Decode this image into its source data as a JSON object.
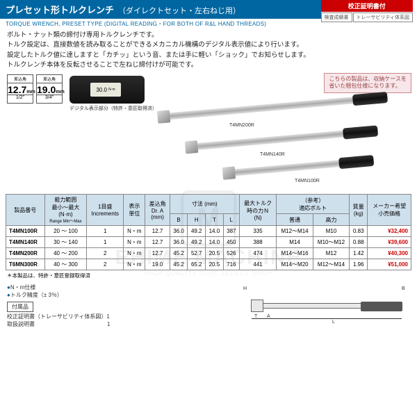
{
  "header": {
    "title_main": "プレセット形トルクレンチ",
    "title_sub": "（ダイレクトセット・左右ねじ用）",
    "subtitle_en": "TORQUE WRENCH, PRESET TYPE (DIGITAL READING・FOR BOTH OF R&L HAND THREADS)",
    "badge_red": "校正証明書付",
    "badge_g1": "検査成績書",
    "badge_g2": "トレーサビリティ体系図"
  },
  "desc": {
    "l1": "ボルト・ナット類の締付け専用トルクレンチです。",
    "l2": "トルク設定は、直接数値を読み取ることができるメカニカル機構のデジタル表示値により行います。",
    "l3": "設定したトルク値に達しますと「カチッ」という音、または手に軽い「ショック」でお知らせします。",
    "l4": "トルクレンチ本体を反転させることで左ねじ締付けが可能です。"
  },
  "drives": [
    {
      "top": "差込角",
      "mm": "12.7",
      "unit": "mm",
      "frac": "1/2\""
    },
    {
      "top": "差込角",
      "mm": "19.0",
      "unit": "mm",
      "frac": "3/4\""
    }
  ],
  "digital": {
    "value": "30.0",
    "unit": "N·m",
    "caption": "デジタル表示部分（特許・意匠取得済）"
  },
  "note_box": "こちらの製品は、収納ケースを\n省いた梱包仕様になります。",
  "wrench_labels": {
    "w1": "T4MN200R",
    "w2": "T4MN140R",
    "w3": "T4MN100R"
  },
  "table": {
    "headers": {
      "part": "製品番号",
      "range": "能力範囲\n最小〜最大\n(N·m)",
      "range_en": "Range Min〜Max",
      "incr": "1目盛\nIncrements",
      "unit": "表示\n単位",
      "sq": "差込角\nDr. A\n(mm)",
      "dim": "寸法 (mm)",
      "B": "B",
      "H": "H",
      "T": "T",
      "L": "L",
      "maxN": "最大トルク\n時の力Ｎ\n(N)",
      "bolt": "（参考）\n適応ボルト",
      "bolt1": "普通",
      "bolt2": "高力",
      "mass": "質量\n(kg)",
      "price": "メーカー希望\n小売価格"
    },
    "rows": [
      {
        "part": "T4MN100R",
        "range": "20 〜 100",
        "incr": "1",
        "unit": "N・m",
        "sq": "12.7",
        "B": "36.0",
        "H": "49.2",
        "T": "14.0",
        "L": "387",
        "maxN": "335",
        "bolt1": "M12〜M14",
        "bolt2": "M10",
        "mass": "0.83",
        "price": "¥32,400"
      },
      {
        "part": "T4MN140R",
        "range": "30 〜 140",
        "incr": "1",
        "unit": "N・m",
        "sq": "12.7",
        "B": "36.0",
        "H": "49.2",
        "T": "14.0",
        "L": "450",
        "maxN": "388",
        "bolt1": "M14",
        "bolt2": "M10〜M12",
        "mass": "0.88",
        "price": "¥39,600"
      },
      {
        "part": "T4MN200R",
        "range": "40 〜 200",
        "incr": "2",
        "unit": "N・m",
        "sq": "12.7",
        "B": "45.2",
        "H": "52.7",
        "T": "20.5",
        "L": "526",
        "maxN": "474",
        "bolt1": "M14〜M16",
        "bolt2": "M12",
        "mass": "1.42",
        "price": "¥40,300"
      },
      {
        "part": "T6MN300R",
        "range": "40 〜 300",
        "incr": "2",
        "unit": "N・m",
        "sq": "19.0",
        "B": "45.2",
        "H": "65.2",
        "T": "20.5",
        "L": "716",
        "maxN": "441",
        "bolt1": "M14〜M20",
        "bolt2": "M12〜M14",
        "mass": "1.96",
        "price": "¥51,000"
      }
    ],
    "note": "＊本製品は、特許・意匠登録取得済"
  },
  "footer": {
    "b1": "N・m仕様",
    "b2": "トルク精度（± 3％）",
    "manual_title": "付属品",
    "m1": "校正証明書（トレーサビリティ体系図）1",
    "m2": "取扱説明書　　　　　　　　　　　　　1"
  },
  "diagram": {
    "A": "A",
    "B": "B",
    "H": "H",
    "T": "T",
    "L": "L"
  },
  "watermark": {
    "logo": "M",
    "text": "EHIME MACHINE",
    "sub": "HIGH QUALITY TOOL SELECT SHOP"
  }
}
